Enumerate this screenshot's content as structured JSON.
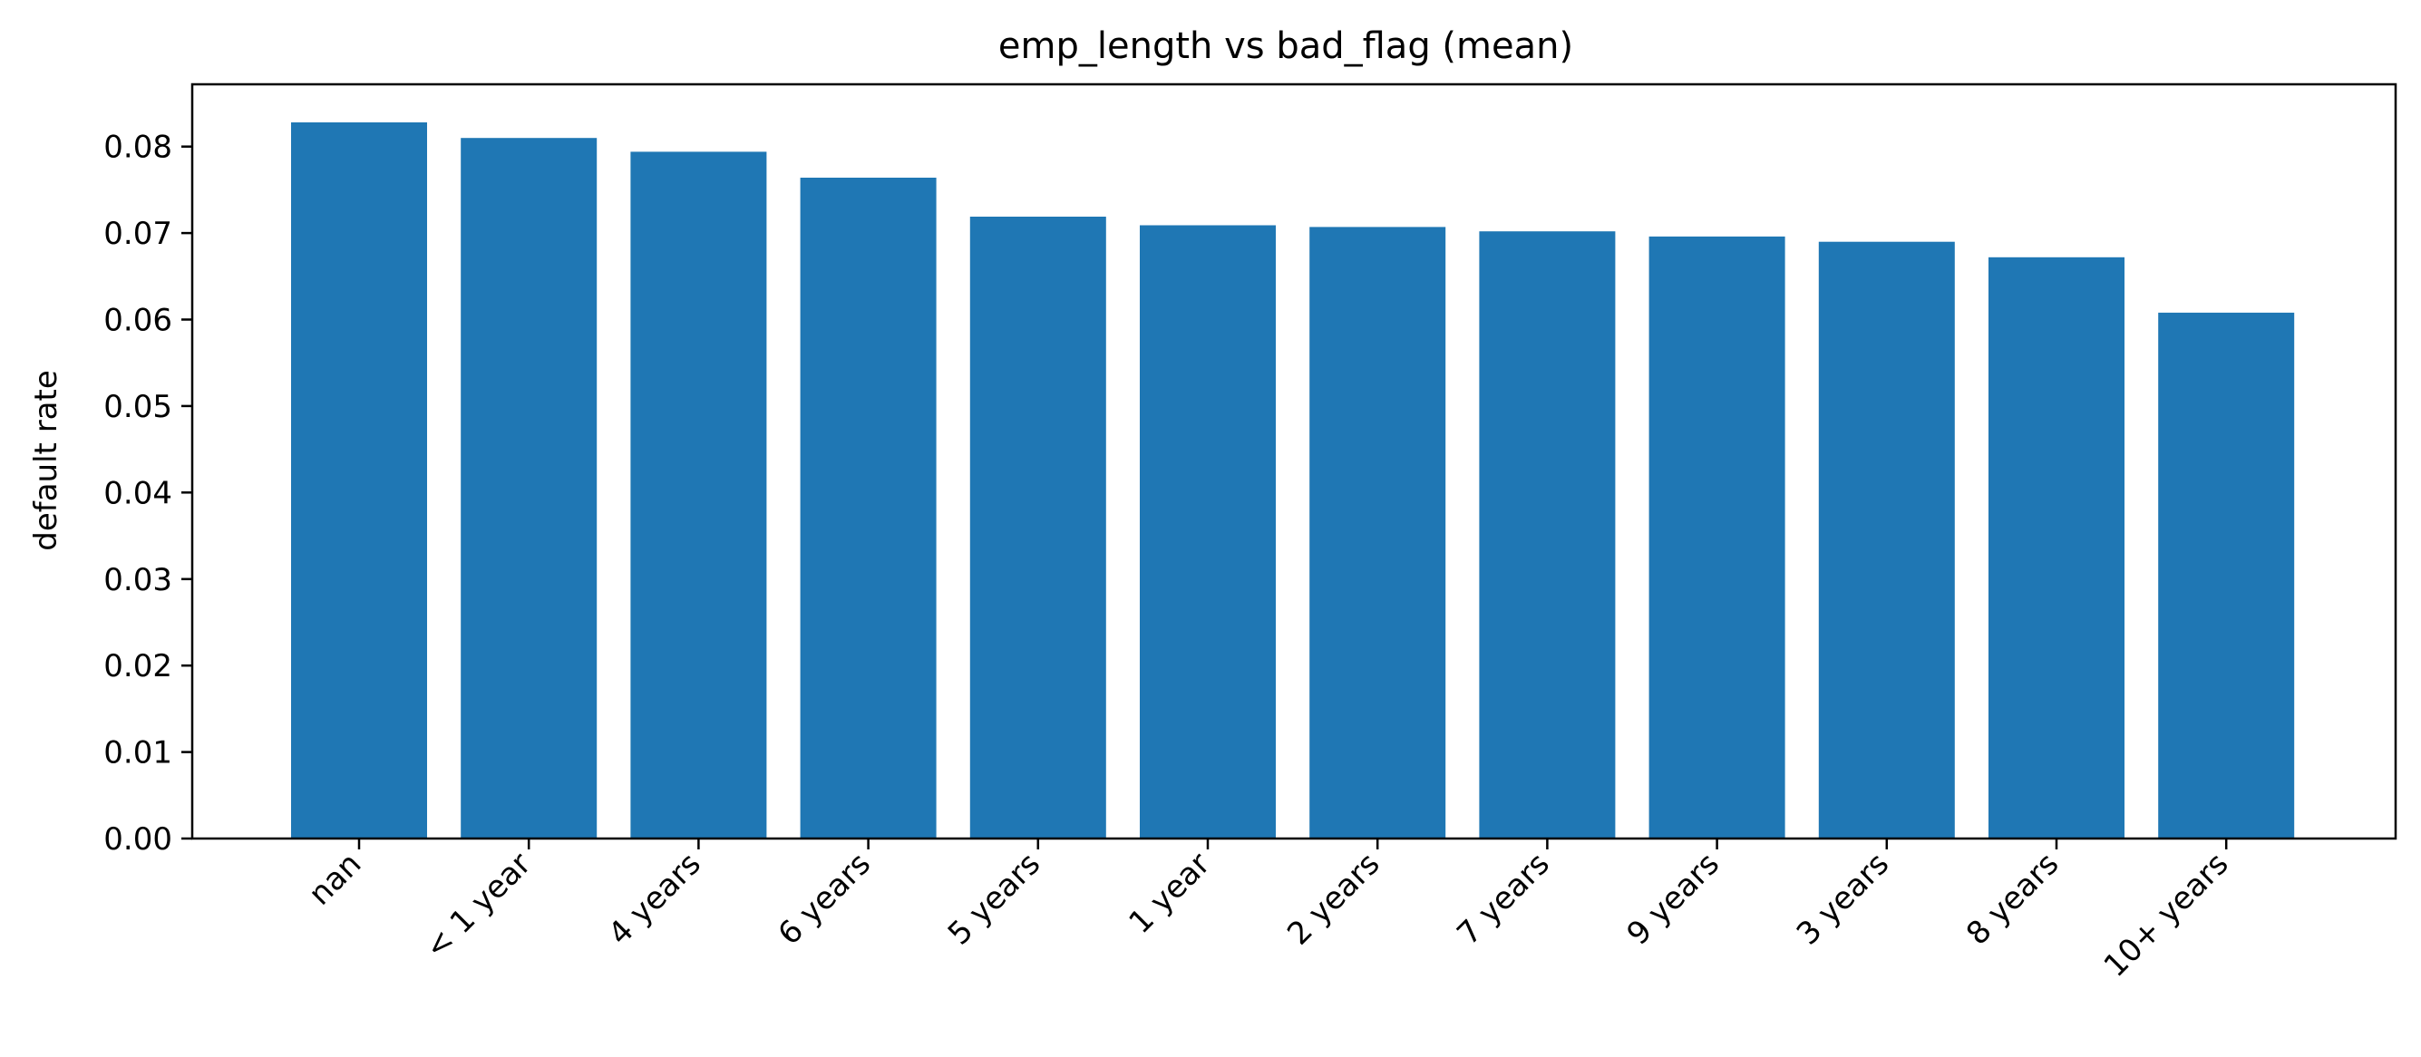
{
  "chart_data": {
    "type": "bar",
    "title": "emp_length vs bad_flag (mean)",
    "xlabel": "",
    "ylabel": "default rate",
    "categories": [
      "nan",
      "< 1 year",
      "4 years",
      "6 years",
      "5 years",
      "1 year",
      "2 years",
      "7 years",
      "9 years",
      "3 years",
      "8 years",
      "10+ years"
    ],
    "values": [
      0.0828,
      0.081,
      0.0794,
      0.0764,
      0.0719,
      0.0709,
      0.0707,
      0.0702,
      0.0696,
      0.069,
      0.0672,
      0.0608
    ],
    "ylim": [
      0,
      0.0872
    ],
    "yticks": [
      0.0,
      0.01,
      0.02,
      0.03,
      0.04,
      0.05,
      0.06,
      0.07,
      0.08
    ],
    "ytick_labels": [
      "0.00",
      "0.01",
      "0.02",
      "0.03",
      "0.04",
      "0.05",
      "0.06",
      "0.07",
      "0.08"
    ],
    "bar_color": "#1f77b4",
    "grid": false,
    "legend": "none"
  }
}
